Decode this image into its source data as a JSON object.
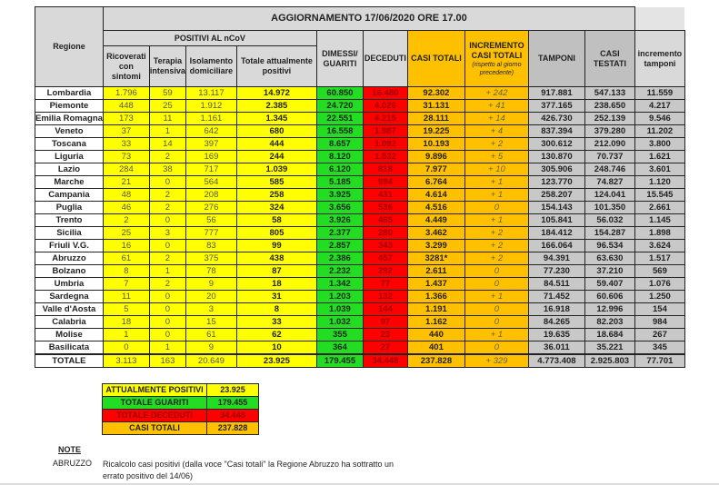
{
  "header": {
    "title": "AGGIORNAMENTO 17/06/2020 ORE 17.00",
    "regione": "Regione",
    "positivi_group": "POSITIVI AL nCoV",
    "columns": [
      "Ricoverati con sintomi",
      "Terapia intensiva",
      "Isolamento domiciliare",
      "Totale attualmente positivi",
      "DIMESSI/ GUARITI",
      "DECEDUTI",
      "CASI TOTALI",
      "INCREMENTO CASI TOTALI",
      "TAMPONI",
      "CASI TESTATI",
      "incremento tamponi"
    ],
    "incremento_sub": "(rispetto al giorno precedente)"
  },
  "colors": {
    "yellow": "#ffff00",
    "green": "#22dd22",
    "red": "#ff0000",
    "orange": "#ffc000",
    "gray": "#c8c8c8"
  },
  "rows": [
    [
      "Lombardia",
      "1.796",
      "59",
      "13.117",
      "14.972",
      "60.850",
      "16.480",
      "92.302",
      "+ 242",
      "917.881",
      "547.133",
      "11.559"
    ],
    [
      "Piemonte",
      "448",
      "25",
      "1.912",
      "2.385",
      "24.720",
      "4.026",
      "31.131",
      "+ 41",
      "377.165",
      "238.650",
      "4.217"
    ],
    [
      "Emilia Romagna",
      "173",
      "11",
      "1.161",
      "1.345",
      "22.551",
      "4.215",
      "28.111",
      "+ 14",
      "426.730",
      "252.139",
      "9.546"
    ],
    [
      "Veneto",
      "37",
      "1",
      "642",
      "680",
      "16.558",
      "1.987",
      "19.225",
      "+ 4",
      "837.394",
      "379.280",
      "11.202"
    ],
    [
      "Toscana",
      "33",
      "14",
      "397",
      "444",
      "8.657",
      "1.092",
      "10.193",
      "+ 2",
      "300.612",
      "212.090",
      "3.800"
    ],
    [
      "Liguria",
      "73",
      "2",
      "169",
      "244",
      "8.120",
      "1.532",
      "9.896",
      "+ 5",
      "130.870",
      "70.737",
      "1.621"
    ],
    [
      "Lazio",
      "284",
      "38",
      "717",
      "1.039",
      "6.120",
      "818",
      "7.977",
      "+ 10",
      "305.906",
      "248.746",
      "3.601"
    ],
    [
      "Marche",
      "21",
      "0",
      "564",
      "585",
      "5.185",
      "994",
      "6.764",
      "+ 1",
      "123.770",
      "74.827",
      "1.120"
    ],
    [
      "Campania",
      "48",
      "2",
      "208",
      "258",
      "3.925",
      "431",
      "4.614",
      "+ 1",
      "258.207",
      "124.041",
      "15.545"
    ],
    [
      "Puglia",
      "46",
      "2",
      "276",
      "324",
      "3.656",
      "536",
      "4.516",
      "0",
      "154.143",
      "101.350",
      "2.661"
    ],
    [
      "Trento",
      "2",
      "0",
      "56",
      "58",
      "3.926",
      "465",
      "4.449",
      "+ 1",
      "105.841",
      "56.032",
      "1.145"
    ],
    [
      "Sicilia",
      "25",
      "3",
      "777",
      "805",
      "2.377",
      "280",
      "3.462",
      "+ 2",
      "184.412",
      "154.287",
      "1.898"
    ],
    [
      "Friuli V.G.",
      "16",
      "0",
      "83",
      "99",
      "2.857",
      "343",
      "3.299",
      "+ 2",
      "166.064",
      "96.534",
      "3.624"
    ],
    [
      "Abruzzo",
      "61",
      "2",
      "375",
      "438",
      "2.386",
      "457",
      "3281*",
      "+ 2",
      "94.391",
      "63.630",
      "1.517"
    ],
    [
      "Bolzano",
      "8",
      "1",
      "78",
      "87",
      "2.232",
      "292",
      "2.611",
      "0",
      "77.230",
      "37.210",
      "569"
    ],
    [
      "Umbria",
      "7",
      "2",
      "9",
      "18",
      "1.342",
      "77",
      "1.437",
      "0",
      "84.511",
      "59.407",
      "1.076"
    ],
    [
      "Sardegna",
      "11",
      "0",
      "20",
      "31",
      "1.203",
      "132",
      "1.366",
      "+ 1",
      "71.452",
      "60.606",
      "1.250"
    ],
    [
      "Valle d'Aosta",
      "5",
      "0",
      "3",
      "8",
      "1.039",
      "144",
      "1.191",
      "0",
      "16.918",
      "12.996",
      "154"
    ],
    [
      "Calabria",
      "18",
      "0",
      "15",
      "33",
      "1.032",
      "97",
      "1.162",
      "0",
      "84.265",
      "82.203",
      "984"
    ],
    [
      "Molise",
      "1",
      "0",
      "61",
      "62",
      "355",
      "23",
      "440",
      "+ 1",
      "19.635",
      "18.684",
      "267"
    ],
    [
      "Basilicata",
      "0",
      "1",
      "9",
      "10",
      "364",
      "27",
      "401",
      "0",
      "36.011",
      "35.221",
      "345"
    ]
  ],
  "total": [
    "TOTALE",
    "3.113",
    "163",
    "20.649",
    "23.925",
    "179.455",
    "34.448",
    "237.828",
    "+ 329",
    "4.773.408",
    "2.925.803",
    "77.701"
  ],
  "summary": [
    {
      "label": "ATTUALMENTE POSITIVI",
      "value": "23.925",
      "color": "#ffff00",
      "text": "#222"
    },
    {
      "label": "TOTALE GUARITI",
      "value": "179.455",
      "color": "#22dd22",
      "text": "#222"
    },
    {
      "label": "TOTALE DECEDUTI",
      "value": "34.448",
      "color": "#ff0000",
      "text": "#900"
    },
    {
      "label": "CASI TOTALI",
      "value": "237.828",
      "color": "#ffc000",
      "text": "#222"
    }
  ],
  "note": {
    "heading": "NOTE",
    "region": "ABRUZZO",
    "text": "Ricalcolo casi positivi (dalla voce \"Casi totali\" la Regione Abruzzo ha sottratto  un errato positivo del 14/06)"
  }
}
